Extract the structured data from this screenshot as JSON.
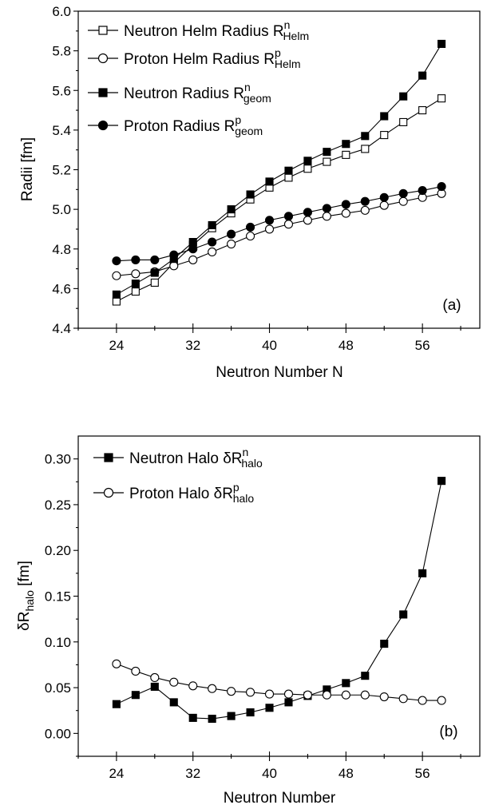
{
  "chart_data": [
    {
      "type": "line",
      "panel_label": "(a)",
      "xlabel": "Neutron Number N",
      "ylabel": "Radii [fm]",
      "xlim": [
        20,
        62
      ],
      "ylim": [
        4.4,
        6.0
      ],
      "xticks": [
        24,
        32,
        40,
        48,
        56
      ],
      "yticks": [
        4.4,
        4.6,
        4.8,
        5.0,
        5.2,
        5.4,
        5.6,
        5.8,
        6.0
      ],
      "ytick_labels": [
        "4.4",
        "4.6",
        "4.8",
        "5.0",
        "5.2",
        "5.4",
        "5.6",
        "5.8",
        "6.0"
      ],
      "x": [
        24,
        26,
        28,
        30,
        32,
        34,
        36,
        38,
        40,
        42,
        44,
        46,
        48,
        50,
        52,
        54,
        56,
        58
      ],
      "legend_position": "top-left",
      "series": [
        {
          "name": "Neutron Helm Radius R",
          "sup": "n",
          "sub": "Helm",
          "marker": "open-square",
          "values": [
            4.535,
            4.585,
            4.63,
            4.73,
            4.82,
            4.905,
            4.98,
            5.05,
            5.11,
            5.16,
            5.205,
            5.24,
            5.275,
            5.305,
            5.375,
            5.44,
            5.5,
            5.56
          ]
        },
        {
          "name": "Proton Helm Radius R",
          "sup": "p",
          "sub": "Helm",
          "marker": "open-circle",
          "values": [
            4.665,
            4.675,
            4.685,
            4.715,
            4.745,
            4.785,
            4.825,
            4.865,
            4.9,
            4.925,
            4.945,
            4.965,
            4.98,
            4.995,
            5.02,
            5.04,
            5.06,
            5.08
          ]
        },
        {
          "name": "Neutron Radius R",
          "sup": "n",
          "sub": "geom",
          "marker": "filled-square",
          "values": [
            4.57,
            4.625,
            4.68,
            4.75,
            4.835,
            4.92,
            5.0,
            5.075,
            5.14,
            5.195,
            5.245,
            5.29,
            5.33,
            5.37,
            5.47,
            5.57,
            5.675,
            5.835
          ]
        },
        {
          "name": "Proton Radius R",
          "sup": "p",
          "sub": "geom",
          "marker": "filled-circle",
          "values": [
            4.74,
            4.745,
            4.745,
            4.77,
            4.8,
            4.835,
            4.875,
            4.91,
            4.945,
            4.965,
            4.985,
            5.005,
            5.025,
            5.04,
            5.06,
            5.08,
            5.095,
            5.115
          ]
        }
      ]
    },
    {
      "type": "line",
      "panel_label": "(b)",
      "xlabel": "Neutron Number",
      "ylabel": "δR",
      "ylabel_sub": "halo",
      "ylabel_unit": " [fm]",
      "xlim": [
        20,
        62
      ],
      "ylim": [
        -0.025,
        0.325
      ],
      "xticks": [
        24,
        32,
        40,
        48,
        56
      ],
      "yticks": [
        0.0,
        0.05,
        0.1,
        0.15,
        0.2,
        0.25,
        0.3
      ],
      "ytick_labels": [
        "0.00",
        "0.05",
        "0.10",
        "0.15",
        "0.20",
        "0.25",
        "0.30"
      ],
      "x": [
        24,
        26,
        28,
        30,
        32,
        34,
        36,
        38,
        40,
        42,
        44,
        46,
        48,
        50,
        52,
        54,
        56,
        58
      ],
      "legend_position": "top-left",
      "series": [
        {
          "name": "Neutron Halo δR",
          "sup": "n",
          "sub": "halo",
          "marker": "filled-square",
          "values": [
            0.032,
            0.042,
            0.051,
            0.034,
            0.017,
            0.016,
            0.019,
            0.023,
            0.028,
            0.034,
            0.041,
            0.048,
            0.055,
            0.063,
            0.098,
            0.13,
            0.175,
            0.276
          ]
        },
        {
          "name": "Proton Halo δR",
          "sup": "p",
          "sub": "halo",
          "marker": "open-circle",
          "values": [
            0.076,
            0.068,
            0.061,
            0.056,
            0.052,
            0.049,
            0.046,
            0.045,
            0.043,
            0.043,
            0.042,
            0.042,
            0.042,
            0.042,
            0.04,
            0.038,
            0.036,
            0.036
          ]
        }
      ]
    }
  ]
}
